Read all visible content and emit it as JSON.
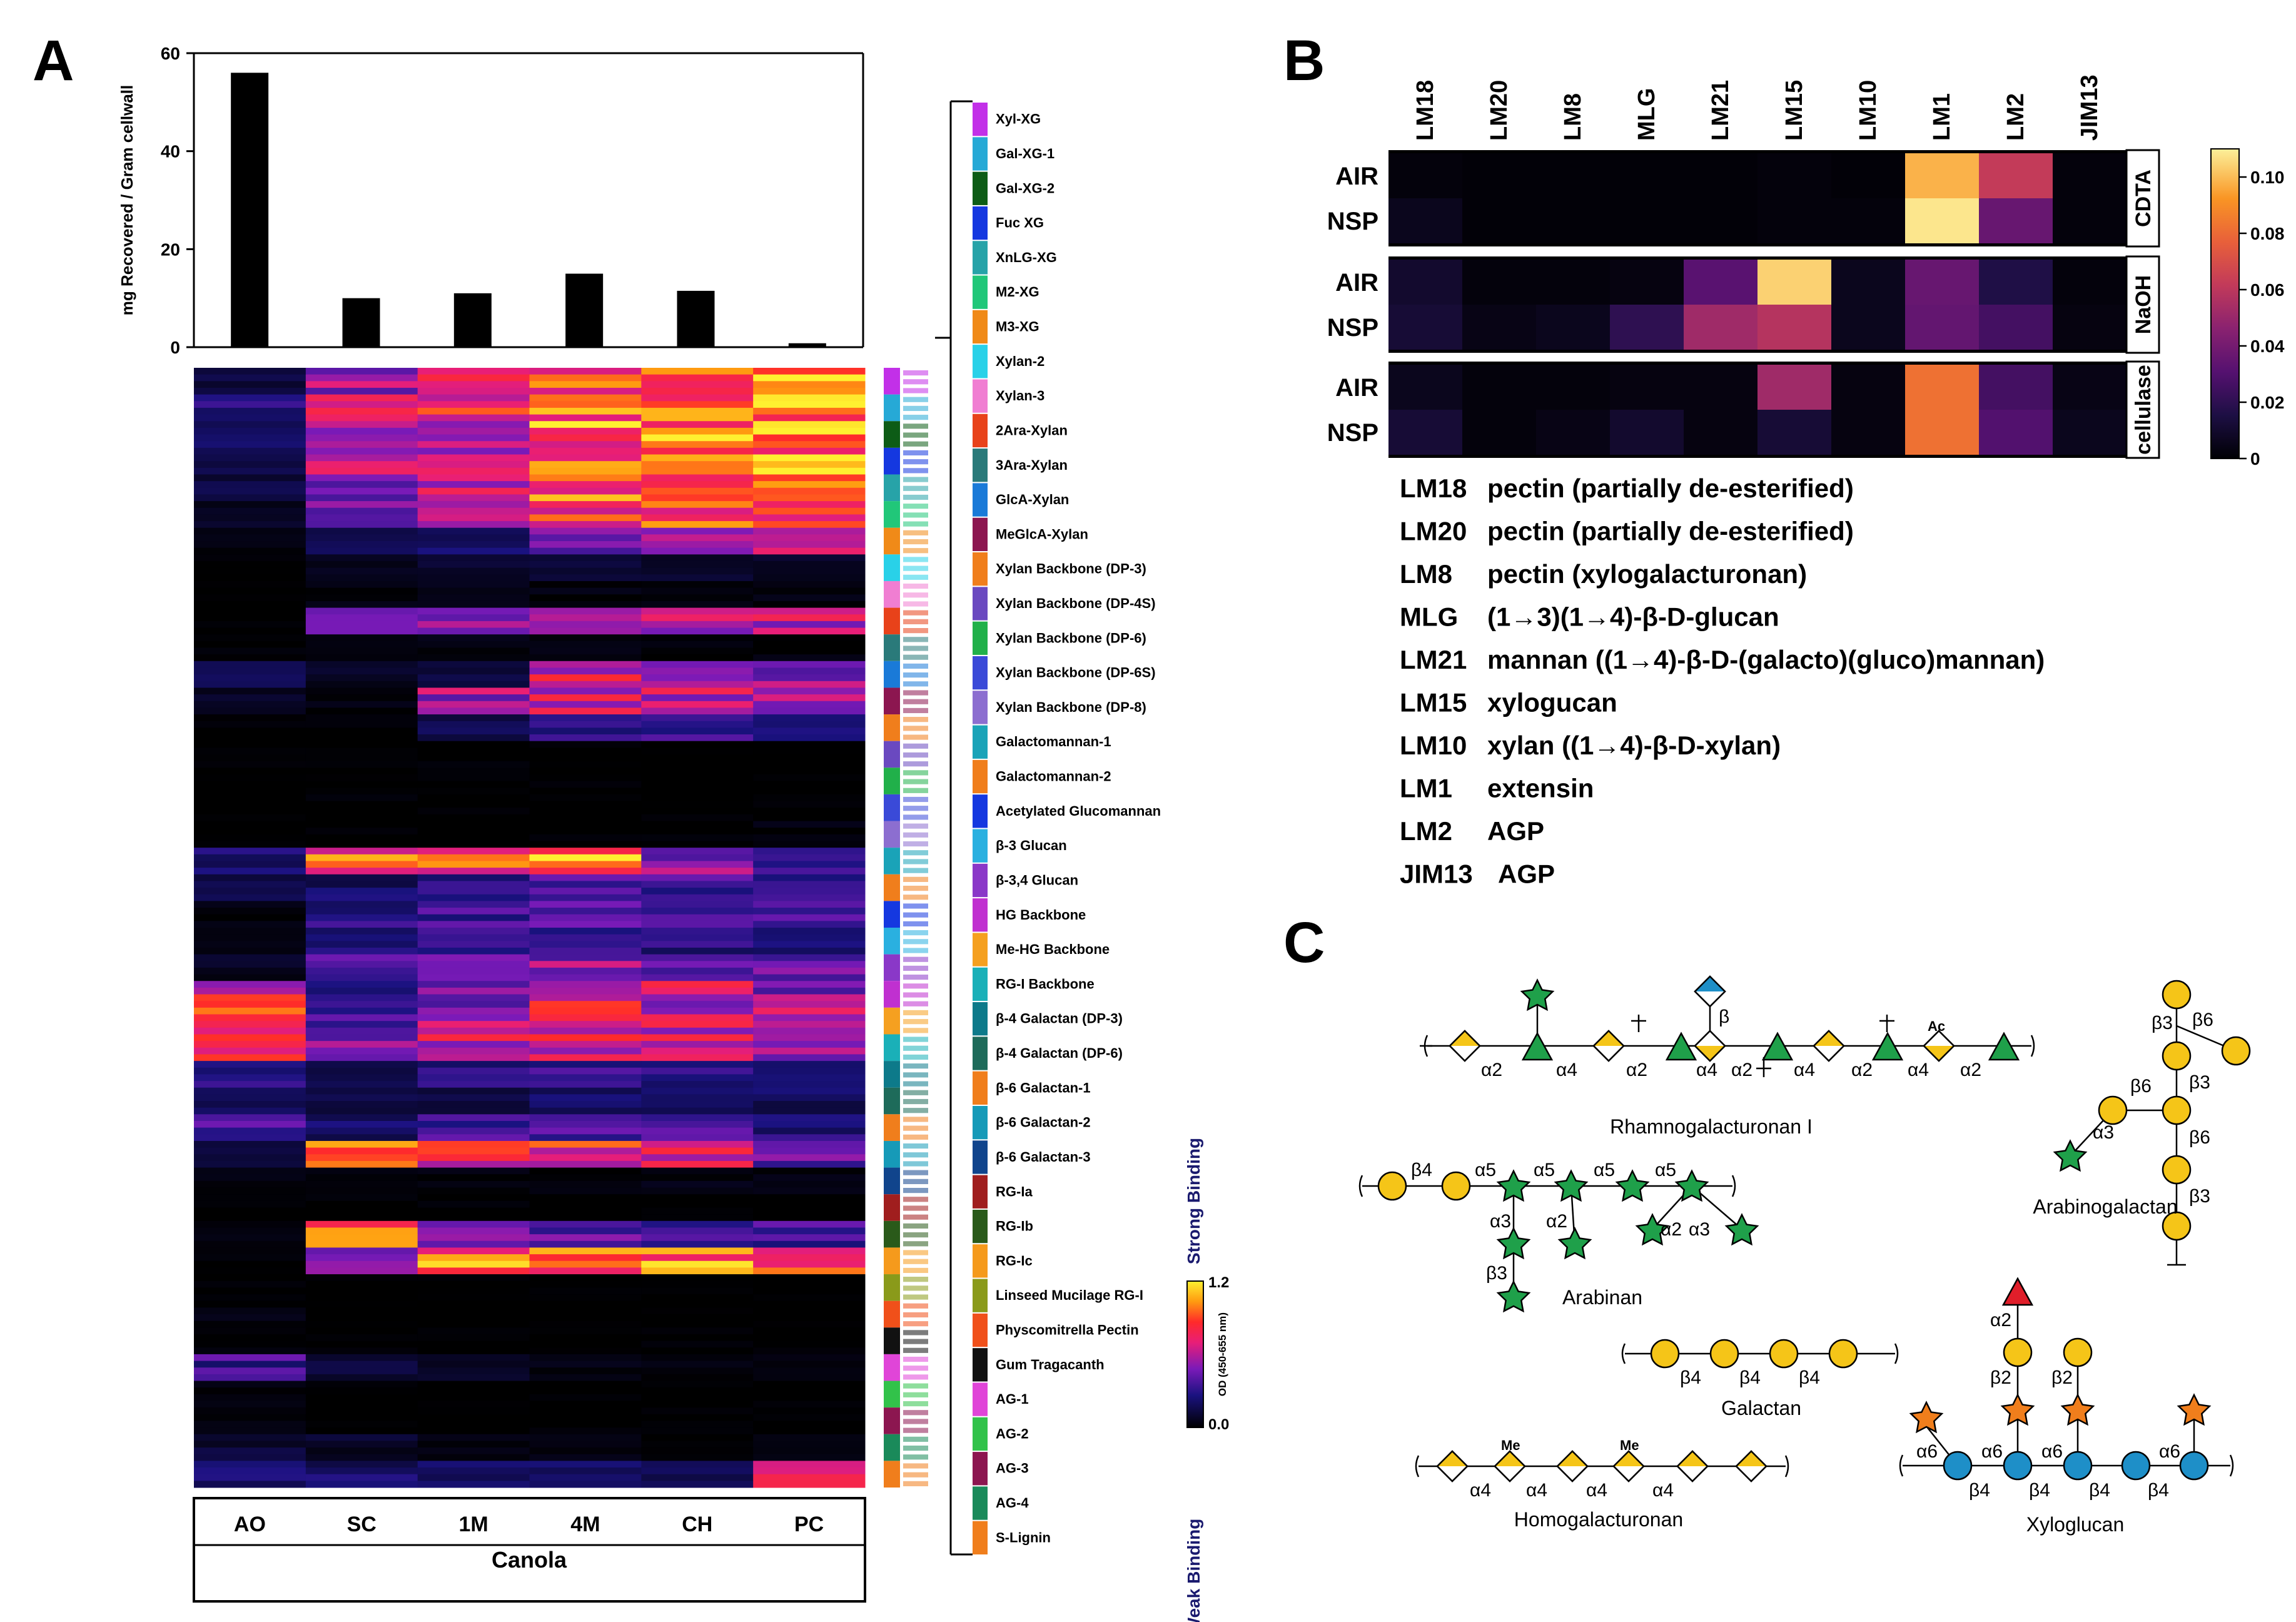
{
  "panels": {
    "a": "A",
    "b": "B",
    "c": "C"
  },
  "chart_data": [
    {
      "type": "bar",
      "id": "A-top",
      "categories": [
        "AO",
        "SC",
        "1M",
        "4M",
        "CH",
        "PC"
      ],
      "values": [
        56,
        10,
        11,
        15,
        11.5,
        0.8
      ],
      "ylabel": "mg Recovered / Gram cellwall",
      "ylim": [
        0,
        60
      ],
      "yticks": [
        "0",
        "20",
        "40",
        "60"
      ],
      "ytick_values": [
        0,
        20,
        40,
        60
      ]
    },
    {
      "type": "heatmap",
      "id": "A-glycome",
      "columns": [
        "AO",
        "SC",
        "1M",
        "4M",
        "CH",
        "PC"
      ],
      "group_label": "Canola",
      "colorbar": {
        "min_label": "0.0",
        "max_label": "1.2",
        "min": 0,
        "max": 1.2,
        "title": "OD (450-655 nm)",
        "weak": "Weak Binding",
        "strong": "Strong Binding"
      },
      "profiles": {
        "clusters": [
          {
            "name": "Xyl-XG",
            "values": [
              0.15,
              0.55,
              0.75,
              0.95,
              1.0,
              1.05
            ]
          },
          {
            "name": "Gal-XG-1",
            "values": [
              0.28,
              0.7,
              0.78,
              1.0,
              1.05,
              1.1
            ]
          },
          {
            "name": "Gal-XG-2",
            "values": [
              0.22,
              0.62,
              0.7,
              0.98,
              1.05,
              1.08
            ]
          },
          {
            "name": "Fuc XG",
            "values": [
              0.18,
              0.6,
              0.7,
              0.95,
              1.0,
              1.05
            ]
          },
          {
            "name": "XnLG-XG",
            "values": [
              0.15,
              0.55,
              0.65,
              0.9,
              0.95,
              1.0
            ]
          },
          {
            "name": "M2-XG",
            "values": [
              0.1,
              0.45,
              0.55,
              0.85,
              0.9,
              0.92
            ]
          },
          {
            "name": "M3-XG",
            "values": [
              0.05,
              0.2,
              0.25,
              0.5,
              0.55,
              0.6
            ]
          },
          {
            "name": "Xylan-2",
            "values": [
              0.02,
              0.1,
              0.12,
              0.15,
              0.12,
              0.1
            ]
          },
          {
            "name": "Xylan-3",
            "values": [
              0.02,
              0.05,
              0.08,
              0.05,
              0.05,
              0.05
            ]
          },
          {
            "name": "2Ara-Xylan",
            "values": [
              0.02,
              0.45,
              0.55,
              0.75,
              0.7,
              0.65
            ]
          },
          {
            "name": "3Ara-Xylan",
            "values": [
              0.02,
              0.05,
              0.05,
              0.05,
              0.05,
              0.04
            ]
          },
          {
            "name": "GlcA-Xylan",
            "values": [
              0.2,
              0.1,
              0.15,
              0.7,
              0.6,
              0.55
            ]
          },
          {
            "name": "MeGlcA-Xylan",
            "values": [
              0.1,
              0.05,
              0.55,
              0.7,
              0.65,
              0.6
            ]
          },
          {
            "name": "Xylan Backbone (DP-3)",
            "values": [
              0.02,
              0.02,
              0.2,
              0.35,
              0.35,
              0.3
            ]
          },
          {
            "name": "Xylan Backbone (DP-4S)",
            "values": [
              0.02,
              0.02,
              0.02,
              0.02,
              0.02,
              0.02
            ]
          },
          {
            "name": "Xylan Backbone (DP-6)",
            "values": [
              0.02,
              0.02,
              0.02,
              0.02,
              0.02,
              0.02
            ]
          },
          {
            "name": "Xylan Backbone (DP-6S)",
            "values": [
              0.02,
              0.02,
              0.02,
              0.02,
              0.02,
              0.02
            ]
          },
          {
            "name": "Xylan Backbone (DP-8)",
            "values": [
              0.02,
              0.02,
              0.02,
              0.02,
              0.02,
              0.04
            ]
          },
          {
            "name": "Galactomannan-1",
            "values": [
              0.25,
              0.95,
              0.85,
              1.05,
              0.55,
              0.3
            ]
          },
          {
            "name": "Galactomannan-2",
            "values": [
              0.15,
              0.25,
              0.3,
              0.4,
              0.35,
              0.3
            ]
          },
          {
            "name": "Acetylated Glucomannan",
            "values": [
              0.05,
              0.3,
              0.35,
              0.45,
              0.4,
              0.35
            ]
          },
          {
            "name": "β-3 Glucan",
            "values": [
              0.05,
              0.25,
              0.3,
              0.35,
              0.3,
              0.25
            ]
          },
          {
            "name": "β-3,4 Glucan",
            "values": [
              0.1,
              0.4,
              0.45,
              0.55,
              0.5,
              0.45
            ]
          },
          {
            "name": "HG Backbone",
            "values": [
              0.7,
              0.3,
              0.55,
              0.75,
              0.65,
              0.55
            ]
          },
          {
            "name": "Me-HG Backbone",
            "values": [
              0.8,
              0.45,
              0.65,
              0.75,
              0.7,
              0.6
            ]
          },
          {
            "name": "RG-I Backbone",
            "values": [
              0.75,
              0.5,
              0.65,
              0.7,
              0.65,
              0.6
            ]
          },
          {
            "name": "β-4 Galactan (DP-3)",
            "values": [
              0.3,
              0.2,
              0.3,
              0.35,
              0.3,
              0.25
            ]
          },
          {
            "name": "β-4 Galactan (DP-6)",
            "values": [
              0.2,
              0.15,
              0.2,
              0.25,
              0.2,
              0.2
            ]
          },
          {
            "name": "β-6 Galactan-1",
            "values": [
              0.35,
              0.25,
              0.35,
              0.4,
              0.35,
              0.3
            ]
          },
          {
            "name": "β-6 Galactan-2",
            "values": [
              0.15,
              0.85,
              0.75,
              0.8,
              0.7,
              0.45
            ]
          },
          {
            "name": "β-6 Galactan-3",
            "values": [
              0.05,
              0.05,
              0.05,
              0.05,
              0.05,
              0.05
            ]
          },
          {
            "name": "RG-Ia",
            "values": [
              0.02,
              0.02,
              0.02,
              0.02,
              0.02,
              0.02
            ]
          },
          {
            "name": "RG-Ib",
            "values": [
              0.05,
              0.95,
              0.55,
              0.45,
              0.4,
              0.35
            ]
          },
          {
            "name": "RG-Ic",
            "values": [
              0.02,
              0.45,
              0.95,
              0.95,
              0.95,
              0.9
            ]
          },
          {
            "name": "Linseed Mucilage RG-I",
            "values": [
              0.02,
              0.02,
              0.02,
              0.02,
              0.02,
              0.02
            ]
          },
          {
            "name": "Physcomitrella Pectin",
            "values": [
              0.05,
              0.02,
              0.02,
              0.02,
              0.02,
              0.02
            ]
          },
          {
            "name": "Gum Tragacanth",
            "values": [
              0.05,
              0.02,
              0.02,
              0.02,
              0.02,
              0.02
            ]
          },
          {
            "name": "AG-1",
            "values": [
              0.35,
              0.15,
              0.1,
              0.05,
              0.05,
              0.05
            ]
          },
          {
            "name": "AG-2",
            "values": [
              0.05,
              0.02,
              0.02,
              0.02,
              0.02,
              0.02
            ]
          },
          {
            "name": "AG-3",
            "values": [
              0.05,
              0.02,
              0.02,
              0.02,
              0.02,
              0.02
            ]
          },
          {
            "name": "AG-4",
            "values": [
              0.15,
              0.1,
              0.05,
              0.05,
              0.05,
              0.05
            ]
          },
          {
            "name": "S-Lignin",
            "values": [
              0.3,
              0.25,
              0.25,
              0.25,
              0.25,
              0.7
            ]
          }
        ]
      },
      "clusters": [
        "Xyl-XG",
        "Gal-XG-1",
        "Gal-XG-2",
        "Fuc XG",
        "XnLG-XG",
        "M2-XG",
        "M3-XG",
        "Xylan-2",
        "Xylan-3",
        "2Ara-Xylan",
        "3Ara-Xylan",
        "GlcA-Xylan",
        "MeGlcA-Xylan",
        "Xylan Backbone (DP-3)",
        "Xylan Backbone (DP-4S)",
        "Xylan Backbone (DP-6)",
        "Xylan Backbone (DP-6S)",
        "Xylan Backbone (DP-8)",
        "Galactomannan-1",
        "Galactomannan-2",
        "Acetylated Glucomannan",
        "β-3 Glucan",
        "β-3,4 Glucan",
        "HG Backbone",
        "Me-HG Backbone",
        "RG-I Backbone",
        "β-4 Galactan (DP-3)",
        "β-4 Galactan (DP-6)",
        "β-6 Galactan-1",
        "β-6 Galactan-2",
        "β-6 Galactan-3",
        "RG-Ia",
        "RG-Ib",
        "RG-Ic",
        "Linseed Mucilage RG-I",
        "Physcomitrella Pectin",
        "Gum Tragacanth",
        "AG-1",
        "AG-2",
        "AG-3",
        "AG-4",
        "S-Lignin"
      ],
      "cluster_colors": [
        "#c230e8",
        "#26a9d6",
        "#0d5c16",
        "#1538e0",
        "#27a3a8",
        "#21c779",
        "#f08a18",
        "#29d1e8",
        "#f07ed2",
        "#e8421a",
        "#2a7a7a",
        "#1a7ad8",
        "#8c1650",
        "#f07e1c",
        "#6a49c0",
        "#21b04a",
        "#3a4ad8",
        "#8c6ed0",
        "#1aa3b8",
        "#f07e1c",
        "#1538e0",
        "#2ab0e0",
        "#8a38c8",
        "#c030d0",
        "#f5a020",
        "#1ab0b8",
        "#0d7a8a",
        "#1e6b5a",
        "#f07e1c",
        "#169ab8",
        "#10448c",
        "#a01e1e",
        "#2a5a1a",
        "#f59a1c",
        "#8a9a1a",
        "#f0501a",
        "#111111",
        "#e045d8",
        "#32c24a",
        "#8c1650",
        "#1a8a5a",
        "#f07e1c"
      ]
    },
    {
      "type": "heatmap",
      "id": "B",
      "columns": [
        "LM18",
        "LM20",
        "LM8",
        "MLG",
        "LM21",
        "LM15",
        "LM10",
        "LM1",
        "LM2",
        "JIM13"
      ],
      "blocks": [
        {
          "label": "CDTA",
          "rows": [
            {
              "name": "AIR",
              "values": [
                0.002,
                0.001,
                0.001,
                0.001,
                0.001,
                0.002,
                0.001,
                0.098,
                0.062,
                0.002
              ]
            },
            {
              "name": "NSP",
              "values": [
                0.006,
                0.001,
                0.001,
                0.001,
                0.001,
                0.002,
                0.002,
                0.108,
                0.036,
                0.002
              ]
            }
          ]
        },
        {
          "label": "NaOH",
          "rows": [
            {
              "name": "AIR",
              "values": [
                0.01,
                0.002,
                0.002,
                0.003,
                0.032,
                0.104,
                0.006,
                0.036,
                0.016,
                0.002
              ]
            },
            {
              "name": "NSP",
              "values": [
                0.012,
                0.004,
                0.006,
                0.02,
                0.052,
                0.058,
                0.006,
                0.035,
                0.026,
                0.003
              ]
            }
          ]
        },
        {
          "label": "cellulase",
          "rows": [
            {
              "name": "AIR",
              "values": [
                0.006,
                0.002,
                0.002,
                0.003,
                0.003,
                0.052,
                0.003,
                0.082,
                0.026,
                0.004
              ]
            },
            {
              "name": "NSP",
              "values": [
                0.012,
                0.002,
                0.004,
                0.01,
                0.003,
                0.012,
                0.003,
                0.082,
                0.03,
                0.006
              ]
            }
          ]
        }
      ],
      "colorbar": {
        "ticks": [
          "0",
          "0.02",
          "0.04",
          "0.06",
          "0.08",
          "0.10"
        ],
        "tick_values": [
          0,
          0.02,
          0.04,
          0.06,
          0.08,
          0.1
        ],
        "max": 0.11
      }
    }
  ],
  "legendB": [
    {
      "code": "LM18",
      "desc": "pectin (partially de-esterified)"
    },
    {
      "code": "LM20",
      "desc": "pectin (partially de-esterified)"
    },
    {
      "code": "LM8",
      "desc": "pectin (xylogalacturonan)"
    },
    {
      "code": "MLG",
      "desc": "(1→3)(1→4)-β-D-glucan"
    },
    {
      "code": "LM21",
      "desc": "mannan ((1→4)-β-D-(galacto)(gluco)mannan)"
    },
    {
      "code": "LM15",
      "desc": "xylogucan"
    },
    {
      "code": "LM10",
      "desc": "xylan ((1→4)-β-D-xylan)"
    },
    {
      "code": "LM1",
      "desc": "extensin"
    },
    {
      "code": "LM2",
      "desc": "AGP"
    },
    {
      "code": "JIM13",
      "desc": "AGP"
    }
  ],
  "structures": {
    "rg1": {
      "title": "Rhamnogalacturonan I",
      "links": [
        "α2",
        "α4",
        "α2",
        "α4",
        "α2",
        "α4",
        "α2",
        "α4",
        "α2"
      ],
      "beta": "β",
      "ac": "Ac"
    },
    "arabinan": {
      "title": "Arabinan",
      "links": [
        "β4",
        "α5",
        "α5",
        "α5",
        "α5"
      ],
      "branch": [
        "α3",
        "β3",
        "α2",
        "α2",
        "α3"
      ]
    },
    "galactan": {
      "title": "Galactan",
      "links": [
        "β4",
        "β4",
        "β4"
      ]
    },
    "homogalacturonan": {
      "title": "Homogalacturonan",
      "links": [
        "α4",
        "α4",
        "α4",
        "α4"
      ],
      "me": "Me"
    },
    "arabinogalactan": {
      "title": "Arabinogalactan",
      "links": [
        "β3",
        "β6",
        "β6",
        "β3",
        "α3",
        "β6",
        "β3"
      ]
    },
    "xyloglucan": {
      "title": "Xyloglucan",
      "links": [
        "β4",
        "β4",
        "β4",
        "β4"
      ],
      "side": [
        "α6",
        "α6",
        "α6",
        "α6"
      ],
      "upper": [
        "β2",
        "β2",
        "α2"
      ]
    }
  }
}
